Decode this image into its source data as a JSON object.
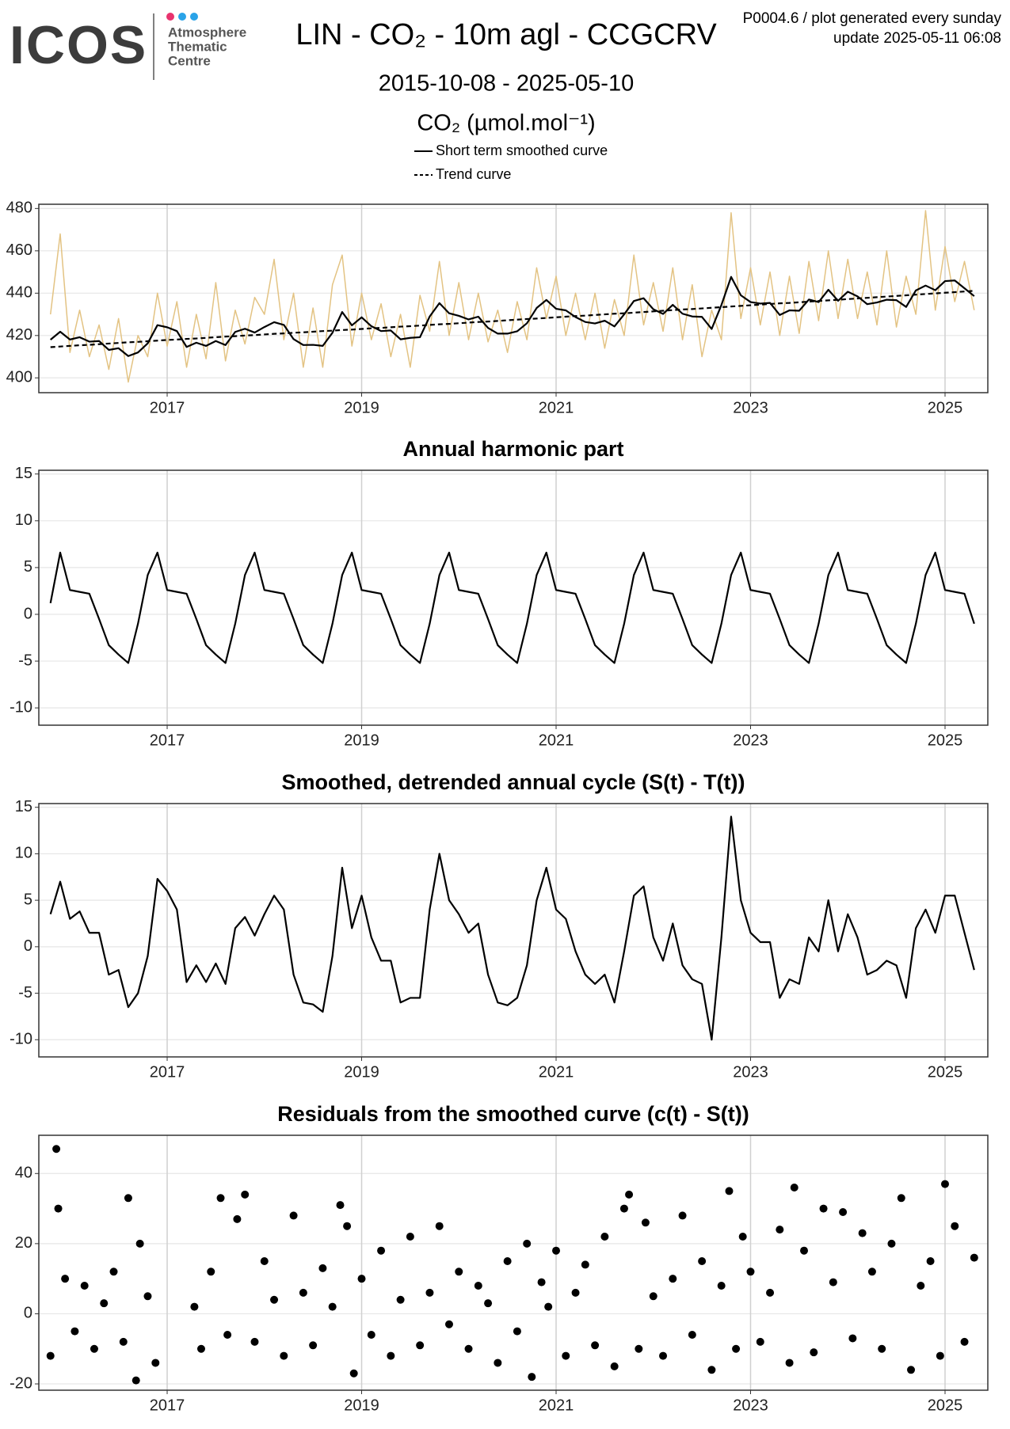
{
  "header": {
    "logo": "ICOS",
    "logo_lines": [
      "Atmosphere",
      "Thematic",
      "Centre"
    ],
    "title": "LIN - CO₂ - 10m agl - CCGCRV",
    "note": "P0004.6 / plot generated every sunday",
    "update": "update  2025-05-11 06:08",
    "date_range": "2015-10-08 - 2025-05-10"
  },
  "chart_data": [
    {
      "type": "line",
      "legend_title": "CO₂ (µmol.mol⁻¹)",
      "xlim": [
        2015.68,
        2025.44
      ],
      "xticks": [
        2017,
        2019,
        2021,
        2023,
        2025
      ],
      "ylim": [
        393,
        482
      ],
      "yticks": [
        400,
        420,
        440,
        460,
        480
      ],
      "grid": true,
      "x": [
        2015.8,
        2015.9,
        2016.0,
        2016.1,
        2016.2,
        2016.3,
        2016.4,
        2016.5,
        2016.6,
        2016.7,
        2016.8,
        2016.9,
        2017.0,
        2017.1,
        2017.2,
        2017.3,
        2017.4,
        2017.5,
        2017.6,
        2017.7,
        2017.8,
        2017.9,
        2018.0,
        2018.1,
        2018.2,
        2018.3,
        2018.4,
        2018.5,
        2018.6,
        2018.7,
        2018.8,
        2018.9,
        2019.0,
        2019.1,
        2019.2,
        2019.3,
        2019.4,
        2019.5,
        2019.6,
        2019.7,
        2019.8,
        2019.9,
        2020.0,
        2020.1,
        2020.2,
        2020.3,
        2020.4,
        2020.5,
        2020.6,
        2020.7,
        2020.8,
        2020.9,
        2021.0,
        2021.1,
        2021.2,
        2021.3,
        2021.4,
        2021.5,
        2021.6,
        2021.7,
        2021.8,
        2021.9,
        2022.0,
        2022.1,
        2022.2,
        2022.3,
        2022.4,
        2022.5,
        2022.6,
        2022.7,
        2022.8,
        2022.9,
        2023.0,
        2023.1,
        2023.2,
        2023.3,
        2023.4,
        2023.5,
        2023.6,
        2023.7,
        2023.8,
        2023.9,
        2024.0,
        2024.1,
        2024.2,
        2024.3,
        2024.4,
        2024.5,
        2024.6,
        2024.7,
        2024.8,
        2024.9,
        2025.0,
        2025.1,
        2025.2,
        2025.3
      ],
      "series": [
        {
          "color": "#e3c383",
          "values": [
            430,
            468,
            412,
            432,
            410,
            425,
            404,
            428,
            398,
            420,
            410,
            440,
            415,
            436,
            405,
            430,
            409,
            445,
            408,
            432,
            416,
            438,
            430,
            456,
            418,
            440,
            405,
            433,
            405,
            444,
            458,
            415,
            440,
            418,
            435,
            410,
            430,
            405,
            439,
            422,
            455,
            420,
            445,
            418,
            440,
            417,
            432,
            412,
            436,
            418,
            452,
            428,
            448,
            420,
            440,
            418,
            440,
            414,
            437,
            420,
            458,
            425,
            445,
            422,
            452,
            418,
            444,
            410,
            432,
            418,
            478,
            428,
            452,
            425,
            450,
            420,
            448,
            421,
            455,
            427,
            460,
            428,
            456,
            428,
            450,
            425,
            460,
            424,
            448,
            430,
            479,
            432,
            462,
            436,
            455,
            432
          ]
        },
        {
          "name": "Short term smoothed curve",
          "color": "#000000",
          "values": [
            418.0,
            421.8,
            418.1,
            419.2,
            417.1,
            417.4,
            413.2,
            414.0,
            410.3,
            412.0,
            416.3,
            424.9,
            423.9,
            422.1,
            414.6,
            416.6,
            415.1,
            417.4,
            415.5,
            421.7,
            423.2,
            421.4,
            424.0,
            426.3,
            425.0,
            418.3,
            415.5,
            415.6,
            415.1,
            421.3,
            431.1,
            424.8,
            428.6,
            424.4,
            422.1,
            422.4,
            418.2,
            418.9,
            419.2,
            429.0,
            435.3,
            430.5,
            429.3,
            427.6,
            428.9,
            423.6,
            420.9,
            420.9,
            422.0,
            425.8,
            433.0,
            436.8,
            432.6,
            431.9,
            428.7,
            426.4,
            425.7,
            427.0,
            424.3,
            430.0,
            436.3,
            437.6,
            432.4,
            430.2,
            434.5,
            430.3,
            429.0,
            428.8,
            423.1,
            434.4,
            447.7,
            439.0,
            435.8,
            435.1,
            435.4,
            429.7,
            431.9,
            431.7,
            437.0,
            435.8,
            441.6,
            436.4,
            440.7,
            438.5,
            434.8,
            435.6,
            436.9,
            436.7,
            433.5,
            441.3,
            443.6,
            441.4,
            445.7,
            446.0,
            442.3,
            438.6
          ]
        },
        {
          "name": "Trend curve",
          "color": "#000000",
          "dash": true,
          "values": [
            414.5,
            414.8,
            415.1,
            415.4,
            415.6,
            415.9,
            416.2,
            416.5,
            416.8,
            417.0,
            417.3,
            417.6,
            417.9,
            418.1,
            418.4,
            418.6,
            418.9,
            419.2,
            419.5,
            419.7,
            420.0,
            420.2,
            420.5,
            420.8,
            421.0,
            421.3,
            421.5,
            421.8,
            422.1,
            422.3,
            422.6,
            422.8,
            423.1,
            423.4,
            423.6,
            423.9,
            424.2,
            424.4,
            424.7,
            425.0,
            425.3,
            425.5,
            425.8,
            426.1,
            426.4,
            426.6,
            426.9,
            427.2,
            427.5,
            427.8,
            428.0,
            428.3,
            428.6,
            428.9,
            429.2,
            429.4,
            429.7,
            430.0,
            430.3,
            430.5,
            430.8,
            431.1,
            431.4,
            431.7,
            432.0,
            432.3,
            432.5,
            432.8,
            433.1,
            433.4,
            433.7,
            434.0,
            434.3,
            434.6,
            434.9,
            435.2,
            435.4,
            435.7,
            436.0,
            436.3,
            436.6,
            436.9,
            437.2,
            437.5,
            437.8,
            438.1,
            438.4,
            438.7,
            439.0,
            439.3,
            439.6,
            439.9,
            440.2,
            440.5,
            440.8,
            441.1
          ]
        }
      ]
    },
    {
      "type": "line",
      "title": "Annual harmonic part",
      "xlim": [
        2015.68,
        2025.44
      ],
      "xticks": [
        2017,
        2019,
        2021,
        2023,
        2025
      ],
      "ylim": [
        -11.85,
        15.4
      ],
      "yticks": [
        -10,
        -5,
        0,
        5,
        10,
        15
      ],
      "grid": true,
      "x": [
        2015.8,
        2015.9,
        2016.0,
        2016.1,
        2016.2,
        2016.3,
        2016.4,
        2016.5,
        2016.6,
        2016.7,
        2016.8,
        2016.9,
        2017.0,
        2017.1,
        2017.2,
        2017.3,
        2017.4,
        2017.5,
        2017.6,
        2017.7,
        2017.8,
        2017.9,
        2018.0,
        2018.1,
        2018.2,
        2018.3,
        2018.4,
        2018.5,
        2018.6,
        2018.7,
        2018.8,
        2018.9,
        2019.0,
        2019.1,
        2019.2,
        2019.3,
        2019.4,
        2019.5,
        2019.6,
        2019.7,
        2019.8,
        2019.9,
        2020.0,
        2020.1,
        2020.2,
        2020.3,
        2020.4,
        2020.5,
        2020.6,
        2020.7,
        2020.8,
        2020.9,
        2021.0,
        2021.1,
        2021.2,
        2021.3,
        2021.4,
        2021.5,
        2021.6,
        2021.7,
        2021.8,
        2021.9,
        2022.0,
        2022.1,
        2022.2,
        2022.3,
        2022.4,
        2022.5,
        2022.6,
        2022.7,
        2022.8,
        2022.9,
        2023.0,
        2023.1,
        2023.2,
        2023.3,
        2023.4,
        2023.5,
        2023.6,
        2023.7,
        2023.8,
        2023.9,
        2024.0,
        2024.1,
        2024.2,
        2024.3,
        2024.4,
        2024.5,
        2024.6,
        2024.7,
        2024.8,
        2024.9,
        2025.0,
        2025.1,
        2025.2,
        2025.3
      ],
      "series": [
        {
          "color": "#000000",
          "values": [
            1.2,
            6.6,
            2.6,
            2.4,
            2.2,
            -0.5,
            -3.3,
            -4.3,
            -5.2,
            -1.0,
            4.2,
            6.6,
            2.6,
            2.4,
            2.2,
            -0.5,
            -3.3,
            -4.3,
            -5.2,
            -1.0,
            4.2,
            6.6,
            2.6,
            2.4,
            2.2,
            -0.5,
            -3.3,
            -4.3,
            -5.2,
            -1.0,
            4.2,
            6.6,
            2.6,
            2.4,
            2.2,
            -0.5,
            -3.3,
            -4.3,
            -5.2,
            -1.0,
            4.2,
            6.6,
            2.6,
            2.4,
            2.2,
            -0.5,
            -3.3,
            -4.3,
            -5.2,
            -1.0,
            4.2,
            6.6,
            2.6,
            2.4,
            2.2,
            -0.5,
            -3.3,
            -4.3,
            -5.2,
            -1.0,
            4.2,
            6.6,
            2.6,
            2.4,
            2.2,
            -0.5,
            -3.3,
            -4.3,
            -5.2,
            -1.0,
            4.2,
            6.6,
            2.6,
            2.4,
            2.2,
            -0.5,
            -3.3,
            -4.3,
            -5.2,
            -1.0,
            4.2,
            6.6,
            2.6,
            2.4,
            2.2,
            -0.5,
            -3.3,
            -4.3,
            -5.2,
            -1.0,
            4.2,
            6.6,
            2.6,
            2.4,
            2.2,
            -1.0
          ]
        }
      ]
    },
    {
      "type": "line",
      "title": "Smoothed, detrended annual cycle (S(t) - T(t))",
      "xlim": [
        2015.68,
        2025.44
      ],
      "xticks": [
        2017,
        2019,
        2021,
        2023,
        2025
      ],
      "ylim": [
        -11.85,
        15.4
      ],
      "yticks": [
        -10,
        -5,
        0,
        5,
        10,
        15
      ],
      "grid": true,
      "x": [
        2015.8,
        2015.9,
        2016.0,
        2016.1,
        2016.2,
        2016.3,
        2016.4,
        2016.5,
        2016.6,
        2016.7,
        2016.8,
        2016.9,
        2017.0,
        2017.1,
        2017.2,
        2017.3,
        2017.4,
        2017.5,
        2017.6,
        2017.7,
        2017.8,
        2017.9,
        2018.0,
        2018.1,
        2018.2,
        2018.3,
        2018.4,
        2018.5,
        2018.6,
        2018.7,
        2018.8,
        2018.9,
        2019.0,
        2019.1,
        2019.2,
        2019.3,
        2019.4,
        2019.5,
        2019.6,
        2019.7,
        2019.8,
        2019.9,
        2020.0,
        2020.1,
        2020.2,
        2020.3,
        2020.4,
        2020.5,
        2020.6,
        2020.7,
        2020.8,
        2020.9,
        2021.0,
        2021.1,
        2021.2,
        2021.3,
        2021.4,
        2021.5,
        2021.6,
        2021.7,
        2021.8,
        2021.9,
        2022.0,
        2022.1,
        2022.2,
        2022.3,
        2022.4,
        2022.5,
        2022.6,
        2022.7,
        2022.8,
        2022.9,
        2023.0,
        2023.1,
        2023.2,
        2023.3,
        2023.4,
        2023.5,
        2023.6,
        2023.7,
        2023.8,
        2023.9,
        2024.0,
        2024.1,
        2024.2,
        2024.3,
        2024.4,
        2024.5,
        2024.6,
        2024.7,
        2024.8,
        2024.9,
        2025.0,
        2025.1,
        2025.2,
        2025.3
      ],
      "series": [
        {
          "color": "#000000",
          "values": [
            3.5,
            7,
            3,
            3.8,
            1.5,
            1.5,
            -3,
            -2.5,
            -6.5,
            -5,
            -1,
            7.3,
            6,
            4,
            -3.8,
            -2,
            -3.8,
            -1.8,
            -4,
            2,
            3.2,
            1.2,
            3.5,
            5.5,
            4,
            -3,
            -6,
            -6.2,
            -7,
            -1,
            8.5,
            2,
            5.5,
            1,
            -1.5,
            -1.5,
            -6,
            -5.5,
            -5.5,
            4,
            10,
            5,
            3.5,
            1.5,
            2.5,
            -3,
            -6,
            -6.3,
            -5.5,
            -2,
            5,
            8.5,
            4,
            3,
            -0.5,
            -3,
            -4,
            -3,
            -6,
            -0.5,
            5.5,
            6.5,
            1,
            -1.5,
            2.5,
            -2,
            -3.5,
            -4,
            -10,
            1,
            14,
            5,
            1.5,
            0.5,
            0.5,
            -5.5,
            -3.5,
            -4,
            1,
            -0.5,
            5,
            -0.5,
            3.5,
            1,
            -3,
            -2.5,
            -1.5,
            -2,
            -5.5,
            2,
            4,
            1.5,
            5.5,
            5.5,
            1.5,
            -2.5
          ]
        }
      ]
    },
    {
      "type": "scatter",
      "title": "Residuals from the smoothed curve (c(t) - S(t))",
      "xlim": [
        2015.68,
        2025.44
      ],
      "xticks": [
        2017,
        2019,
        2021,
        2023,
        2025
      ],
      "ylim": [
        -21.8,
        50.9
      ],
      "yticks": [
        -20,
        0,
        20,
        40
      ],
      "grid": true,
      "color": "#000000",
      "x": [
        2015.8,
        2015.86,
        2015.88,
        2015.95,
        2016.05,
        2016.15,
        2016.25,
        2016.35,
        2016.45,
        2016.55,
        2016.6,
        2016.68,
        2016.72,
        2016.8,
        2016.88,
        2017.28,
        2017.35,
        2017.45,
        2017.55,
        2017.62,
        2017.72,
        2017.8,
        2017.9,
        2018.0,
        2018.1,
        2018.2,
        2018.3,
        2018.4,
        2018.5,
        2018.6,
        2018.7,
        2018.78,
        2018.85,
        2018.92,
        2019.0,
        2019.1,
        2019.2,
        2019.3,
        2019.4,
        2019.5,
        2019.6,
        2019.7,
        2019.8,
        2019.9,
        2020.0,
        2020.1,
        2020.2,
        2020.3,
        2020.4,
        2020.5,
        2020.6,
        2020.7,
        2020.75,
        2020.85,
        2020.92,
        2021.0,
        2021.1,
        2021.2,
        2021.3,
        2021.4,
        2021.5,
        2021.6,
        2021.7,
        2021.75,
        2021.85,
        2021.92,
        2022.0,
        2022.1,
        2022.2,
        2022.3,
        2022.4,
        2022.5,
        2022.6,
        2022.7,
        2022.78,
        2022.85,
        2022.92,
        2023.0,
        2023.1,
        2023.2,
        2023.3,
        2023.4,
        2023.45,
        2023.55,
        2023.65,
        2023.75,
        2023.85,
        2023.95,
        2024.05,
        2024.15,
        2024.25,
        2024.35,
        2024.45,
        2024.55,
        2024.65,
        2024.75,
        2024.85,
        2024.95,
        2025.0,
        2025.1,
        2025.2,
        2025.3
      ],
      "values": [
        -12,
        47,
        30,
        10,
        -5,
        8,
        -10,
        3,
        12,
        -8,
        33,
        -19,
        20,
        5,
        -14,
        2,
        -10,
        12,
        33,
        -6,
        27,
        34,
        -8,
        15,
        4,
        -12,
        28,
        6,
        -9,
        13,
        2,
        31,
        25,
        -17,
        10,
        -6,
        18,
        -12,
        4,
        22,
        -9,
        6,
        25,
        -3,
        12,
        -10,
        8,
        3,
        -14,
        15,
        -5,
        20,
        -18,
        9,
        2,
        18,
        -12,
        6,
        14,
        -9,
        22,
        -15,
        30,
        34,
        -10,
        26,
        5,
        -12,
        10,
        28,
        -6,
        15,
        -16,
        8,
        35,
        -10,
        22,
        12,
        -8,
        6,
        24,
        -14,
        36,
        18,
        -11,
        30,
        9,
        29,
        -7,
        23,
        12,
        -10,
        20,
        33,
        -16,
        8,
        15,
        -12,
        37,
        25,
        -8,
        16
      ]
    }
  ]
}
